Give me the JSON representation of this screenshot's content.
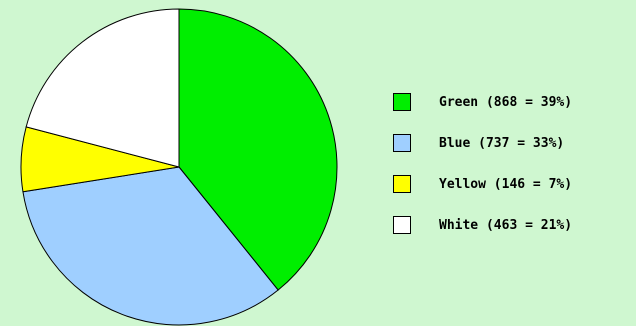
{
  "chart_data": {
    "type": "pie",
    "slices": [
      {
        "name": "Green",
        "value": 868,
        "percent": 39,
        "color": "#00ee00",
        "label": "Green (868 = 39%)"
      },
      {
        "name": "Blue",
        "value": 737,
        "percent": 33,
        "color": "#9fcfff",
        "label": "Blue (737 = 33%)"
      },
      {
        "name": "Yellow",
        "value": 146,
        "percent": 7,
        "color": "#ffff00",
        "label": "Yellow (146 = 7%)"
      },
      {
        "name": "White",
        "value": 463,
        "percent": 21,
        "color": "#ffffff",
        "label": "White (463 = 21%)"
      }
    ],
    "start_angle": "12 o'clock",
    "direction": "clockwise",
    "legend_position": "right"
  }
}
